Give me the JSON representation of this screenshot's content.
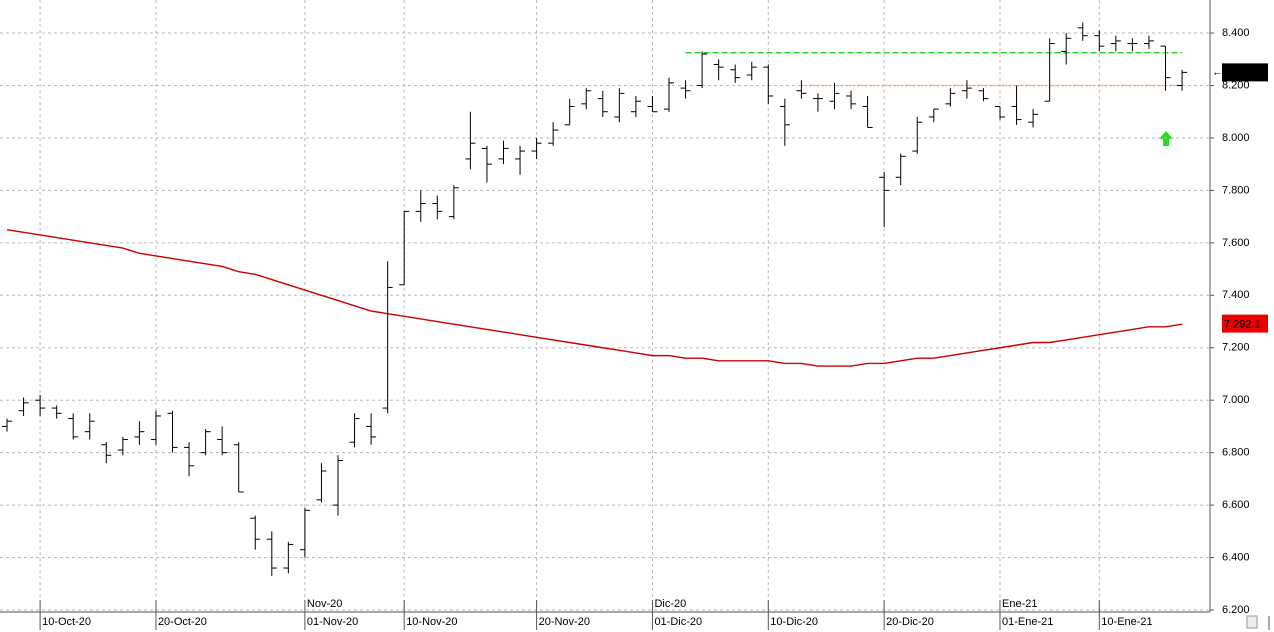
{
  "chart_data": {
    "type": "ohlc",
    "categories": [
      null,
      null,
      "10-Oct-20",
      null,
      null,
      null,
      null,
      null,
      null,
      "20-Oct-20",
      null,
      null,
      null,
      null,
      null,
      null,
      null,
      null,
      "01-Nov-20",
      null,
      null,
      null,
      null,
      null,
      "10-Nov-20",
      null,
      null,
      null,
      null,
      null,
      null,
      null,
      "20-Nov-20",
      null,
      null,
      null,
      null,
      null,
      null,
      "01-Dic-20",
      null,
      null,
      null,
      null,
      null,
      null,
      "10-Dic-20",
      null,
      null,
      null,
      null,
      null,
      null,
      "20-Dic-20",
      null,
      null,
      null,
      null,
      null,
      null,
      "01-Ene-21",
      null,
      null,
      null,
      null,
      null,
      "10-Ene-21",
      null,
      null,
      null,
      null,
      null
    ],
    "month_labels": [
      null,
      null,
      null,
      null,
      null,
      null,
      null,
      null,
      null,
      null,
      null,
      null,
      null,
      null,
      null,
      null,
      null,
      null,
      "Nov-20",
      null,
      null,
      null,
      null,
      null,
      null,
      null,
      null,
      null,
      null,
      null,
      null,
      null,
      null,
      null,
      null,
      null,
      null,
      null,
      null,
      "Dic-20",
      null,
      null,
      null,
      null,
      null,
      null,
      null,
      null,
      null,
      null,
      null,
      null,
      null,
      null,
      null,
      null,
      null,
      null,
      null,
      null,
      "Ene-21",
      null,
      null,
      null,
      null,
      null,
      null,
      null,
      null,
      null,
      null,
      null
    ],
    "ohlc": {
      "color": "#000000",
      "open": [
        6.9,
        6.96,
        7.0,
        6.97,
        6.93,
        6.88,
        6.83,
        6.81,
        6.86,
        6.85,
        6.95,
        6.82,
        6.8,
        6.85,
        6.83,
        6.55,
        6.47,
        6.36,
        6.43,
        6.62,
        6.6,
        6.84,
        6.9,
        6.97,
        7.44,
        7.72,
        7.75,
        7.7,
        7.92,
        7.96,
        7.92,
        7.92,
        7.95,
        7.98,
        8.05,
        8.13,
        8.15,
        8.08,
        8.1,
        8.12,
        8.11,
        8.19,
        8.2,
        8.28,
        8.26,
        8.24,
        8.27,
        8.12,
        8.18,
        8.15,
        8.14,
        8.16,
        8.12,
        7.85,
        7.85,
        7.95,
        8.08,
        8.13,
        8.18,
        8.18,
        8.12,
        8.12,
        8.06,
        8.14,
        8.33,
        8.42,
        8.39,
        8.36,
        8.36,
        8.36,
        8.35,
        8.2
      ],
      "high": [
        6.93,
        7.01,
        7.02,
        6.98,
        6.95,
        6.95,
        6.84,
        6.86,
        6.92,
        6.96,
        6.96,
        6.84,
        6.89,
        6.9,
        6.84,
        6.56,
        6.5,
        6.46,
        6.59,
        6.76,
        6.79,
        6.95,
        6.95,
        7.53,
        7.72,
        7.8,
        7.78,
        7.82,
        8.1,
        7.97,
        7.99,
        7.97,
        8.0,
        8.06,
        8.15,
        8.19,
        8.18,
        8.19,
        8.16,
        8.16,
        8.23,
        8.22,
        8.33,
        8.3,
        8.28,
        8.29,
        8.28,
        8.15,
        8.22,
        8.17,
        8.21,
        8.18,
        8.16,
        7.87,
        7.94,
        8.08,
        8.11,
        8.19,
        8.22,
        8.19,
        8.12,
        8.2,
        8.11,
        8.38,
        8.4,
        8.44,
        8.41,
        8.39,
        8.38,
        8.39,
        8.35,
        8.26
      ],
      "low": [
        6.88,
        6.94,
        6.94,
        6.93,
        6.85,
        6.85,
        6.76,
        6.79,
        6.83,
        6.83,
        6.8,
        6.71,
        6.79,
        6.79,
        6.65,
        6.43,
        6.33,
        6.34,
        6.4,
        6.61,
        6.56,
        6.82,
        6.83,
        6.95,
        7.44,
        7.68,
        7.69,
        7.69,
        7.88,
        7.83,
        7.9,
        7.86,
        7.92,
        7.97,
        8.05,
        8.11,
        8.08,
        8.06,
        8.08,
        8.1,
        8.1,
        8.15,
        8.19,
        8.22,
        8.21,
        8.22,
        8.13,
        7.97,
        8.15,
        8.1,
        8.11,
        8.11,
        8.04,
        7.66,
        7.82,
        7.94,
        8.06,
        8.12,
        8.15,
        8.14,
        8.07,
        8.05,
        8.04,
        8.14,
        8.28,
        8.37,
        8.33,
        8.33,
        8.33,
        8.34,
        8.18,
        8.18
      ],
      "close": [
        6.92,
        6.99,
        6.97,
        6.95,
        6.86,
        6.92,
        6.79,
        6.85,
        6.88,
        6.94,
        6.82,
        6.75,
        6.88,
        6.8,
        6.65,
        6.47,
        6.36,
        6.45,
        6.58,
        6.73,
        6.77,
        6.93,
        6.86,
        7.43,
        7.72,
        7.75,
        7.72,
        7.81,
        7.98,
        7.9,
        7.96,
        7.95,
        7.98,
        8.03,
        8.12,
        8.18,
        8.1,
        8.17,
        8.14,
        8.1,
        8.21,
        8.18,
        8.32,
        8.27,
        8.23,
        8.27,
        8.16,
        8.05,
        8.17,
        8.15,
        8.17,
        8.13,
        8.04,
        7.8,
        7.93,
        8.06,
        8.11,
        8.17,
        8.19,
        8.15,
        8.08,
        8.07,
        8.09,
        8.36,
        8.38,
        8.39,
        8.35,
        8.37,
        8.36,
        8.37,
        8.23,
        8.25
      ]
    },
    "overlays": [
      {
        "color": "#cc0000",
        "dash": "none",
        "values": [
          7.65,
          7.64,
          7.63,
          7.62,
          7.61,
          7.6,
          7.59,
          7.58,
          7.56,
          7.55,
          7.54,
          7.53,
          7.52,
          7.51,
          7.49,
          7.48,
          7.46,
          7.44,
          7.42,
          7.4,
          7.38,
          7.36,
          7.34,
          7.33,
          7.32,
          7.31,
          7.3,
          7.29,
          7.28,
          7.27,
          7.26,
          7.25,
          7.24,
          7.23,
          7.22,
          7.21,
          7.2,
          7.19,
          7.18,
          7.17,
          7.17,
          7.16,
          7.16,
          7.15,
          7.15,
          7.15,
          7.15,
          7.14,
          7.14,
          7.13,
          7.13,
          7.13,
          7.14,
          7.14,
          7.15,
          7.16,
          7.16,
          7.17,
          7.18,
          7.19,
          7.2,
          7.21,
          7.22,
          7.22,
          7.23,
          7.24,
          7.25,
          7.26,
          7.27,
          7.28,
          7.28,
          7.29
        ]
      },
      {
        "color": "#22cc22",
        "dash": "6 3",
        "values": [
          null,
          null,
          null,
          null,
          null,
          null,
          null,
          null,
          null,
          null,
          null,
          null,
          null,
          null,
          null,
          null,
          null,
          null,
          null,
          null,
          null,
          null,
          null,
          null,
          null,
          null,
          null,
          null,
          null,
          null,
          null,
          null,
          null,
          null,
          null,
          null,
          null,
          null,
          null,
          null,
          null,
          8.325,
          8.325,
          8.325,
          8.325,
          8.325,
          8.325,
          8.325,
          8.325,
          8.325,
          8.325,
          8.325,
          8.325,
          8.325,
          8.325,
          8.325,
          8.325,
          8.325,
          8.325,
          8.325,
          8.325,
          8.325,
          8.325,
          8.325,
          8.325,
          8.325,
          8.325,
          8.325,
          8.325,
          8.325,
          8.325,
          8.325
        ]
      },
      {
        "color": "#f4a460",
        "dash": "2 2",
        "values": [
          null,
          null,
          null,
          null,
          null,
          null,
          null,
          null,
          null,
          null,
          null,
          null,
          null,
          null,
          null,
          null,
          null,
          null,
          null,
          null,
          null,
          null,
          null,
          null,
          null,
          null,
          null,
          null,
          null,
          null,
          null,
          null,
          null,
          null,
          null,
          null,
          null,
          null,
          null,
          null,
          null,
          null,
          null,
          null,
          null,
          null,
          null,
          null,
          8.2,
          8.2,
          8.2,
          8.2,
          8.2,
          8.2,
          8.2,
          8.2,
          8.2,
          8.2,
          8.2,
          8.2,
          8.2,
          8.2,
          8.2,
          8.2,
          8.2,
          8.2,
          8.2,
          8.2,
          8.2,
          8.2,
          8.2,
          8.2
        ]
      }
    ],
    "ma_last": {
      "value": 7.2921,
      "label": "7.292.1"
    },
    "ylim": [
      6.2,
      8.526
    ],
    "yticks": [
      {
        "value": 6.2,
        "label": "6.200"
      },
      {
        "value": 6.4,
        "label": "6.400"
      },
      {
        "value": 6.6,
        "label": "6.600"
      },
      {
        "value": 6.8,
        "label": "6.800"
      },
      {
        "value": 7.0,
        "label": "7.000"
      },
      {
        "value": 7.2,
        "label": "7.200"
      },
      {
        "value": 7.4,
        "label": "7.400"
      },
      {
        "value": 7.6,
        "label": "7.600"
      },
      {
        "value": 7.8,
        "label": "7.800"
      },
      {
        "value": 8.0,
        "label": "8.000"
      },
      {
        "value": 8.2,
        "label": "8.200"
      },
      {
        "value": 8.4,
        "label": "8.400"
      }
    ],
    "grid": true
  }
}
